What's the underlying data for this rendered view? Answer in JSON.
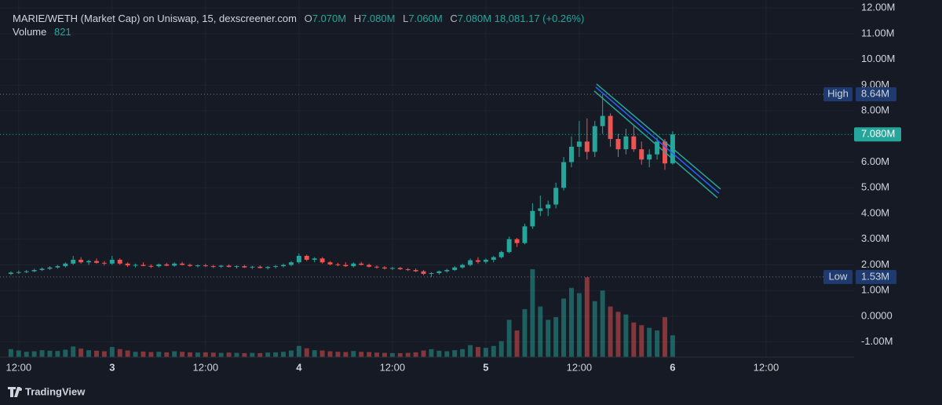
{
  "header": {
    "title": "MARIE/WETH (Market Cap) on Uniswap, 15, dexscreener.com",
    "o_label": "O",
    "o": "7.070M",
    "h_label": "H",
    "h": "7.080M",
    "l_label": "L",
    "l": "7.060M",
    "c_label": "C",
    "c": "7.080M",
    "change": "18,081.17 (+0.26%)",
    "volume_label": "Volume"
  },
  "footer": {
    "brand": "TradingView"
  },
  "chart_data": {
    "type": "candlestick",
    "up_color": "#26a69a",
    "down_color": "#ef5350",
    "xlim": [
      -2.4,
      107.3
    ],
    "xticks": [
      {
        "value": 0,
        "label": "12:00"
      },
      {
        "value": 12,
        "label": "3"
      },
      {
        "value": 24,
        "label": "12:00"
      },
      {
        "value": 36,
        "label": "4"
      },
      {
        "value": 48,
        "label": "12:00"
      },
      {
        "value": 60,
        "label": "5"
      },
      {
        "value": 72,
        "label": "12:00"
      },
      {
        "value": 84,
        "label": "6"
      },
      {
        "value": 96,
        "label": "12:00"
      }
    ],
    "ylim": [
      -1.59,
      12.31
    ],
    "yticks": [
      {
        "value": 12,
        "label": "12.00M"
      },
      {
        "value": 11,
        "label": "11.00M"
      },
      {
        "value": 10,
        "label": "10.00M"
      },
      {
        "value": 9,
        "label": "9.00M"
      },
      {
        "value": 8,
        "label": "8.00M"
      },
      {
        "value": 6,
        "label": "6.00M"
      },
      {
        "value": 5,
        "label": "5.00M"
      },
      {
        "value": 4,
        "label": "4.00M"
      },
      {
        "value": 3,
        "label": "3.00M"
      },
      {
        "value": 2,
        "label": "2.00M"
      },
      {
        "value": 1,
        "label": "1.00M"
      },
      {
        "value": 0,
        "label": "0.0000"
      },
      {
        "value": -1,
        "label": "-1.00M"
      }
    ],
    "grid": true,
    "x": [
      -1,
      0,
      1,
      2,
      3,
      4,
      5,
      6,
      7,
      8,
      9,
      10,
      11,
      12,
      13,
      14,
      15,
      16,
      17,
      18,
      19,
      20,
      21,
      22,
      23,
      24,
      25,
      26,
      27,
      28,
      29,
      30,
      31,
      32,
      33,
      34,
      35,
      36,
      37,
      38,
      39,
      40,
      41,
      42,
      43,
      44,
      45,
      46,
      47,
      48,
      49,
      50,
      51,
      52,
      53,
      54,
      55,
      56,
      57,
      58,
      59,
      60,
      61,
      62,
      63,
      64,
      65,
      66,
      67,
      68,
      69,
      70,
      71,
      72,
      73,
      74,
      75,
      76,
      77,
      78,
      79,
      80,
      81,
      82,
      83,
      84
    ],
    "open": [
      1.65,
      1.7,
      1.72,
      1.75,
      1.8,
      1.85,
      1.9,
      1.95,
      2.05,
      2.2,
      2.1,
      2.15,
      2.08,
      2.05,
      2.2,
      2.05,
      1.98,
      2.0,
      1.96,
      1.95,
      2.02,
      1.97,
      2.05,
      2.0,
      1.96,
      1.98,
      1.95,
      1.93,
      1.97,
      1.92,
      1.95,
      1.9,
      1.93,
      1.88,
      1.92,
      1.95,
      2.0,
      2.1,
      2.35,
      2.2,
      2.25,
      2.1,
      2.02,
      2.0,
      1.95,
      2.05,
      2.0,
      1.93,
      1.9,
      1.86,
      1.88,
      1.83,
      1.8,
      1.75,
      1.65,
      1.68,
      1.75,
      1.8,
      1.9,
      2.0,
      2.18,
      2.12,
      2.2,
      2.3,
      2.5,
      3.0,
      2.85,
      3.5,
      4.1,
      4.2,
      4.35,
      5.0,
      6.0,
      6.6,
      6.8,
      6.4,
      7.4,
      7.8,
      6.9,
      6.5,
      7.0,
      6.5,
      6.1,
      6.3,
      6.8,
      5.95
    ],
    "high": [
      1.75,
      1.78,
      1.8,
      1.85,
      1.9,
      1.95,
      2.0,
      2.1,
      2.35,
      2.3,
      2.2,
      2.25,
      2.15,
      2.35,
      2.25,
      2.1,
      2.05,
      2.1,
      2.02,
      2.05,
      2.08,
      2.1,
      2.12,
      2.05,
      2.02,
      2.04,
      2.0,
      2.0,
      2.02,
      1.98,
      2.0,
      1.96,
      1.98,
      1.95,
      2.0,
      2.05,
      2.15,
      2.45,
      2.4,
      2.3,
      2.3,
      2.15,
      2.08,
      2.1,
      2.1,
      2.12,
      2.05,
      1.98,
      1.95,
      1.92,
      1.92,
      1.88,
      1.86,
      1.8,
      1.72,
      1.78,
      1.85,
      1.95,
      2.05,
      2.25,
      2.3,
      2.25,
      2.35,
      2.55,
      3.1,
      3.05,
      3.6,
      4.4,
      4.7,
      4.5,
      5.2,
      6.2,
      7.0,
      7.6,
      7.7,
      7.6,
      8.64,
      7.9,
      7.1,
      7.3,
      7.4,
      6.8,
      6.5,
      6.95,
      6.9,
      7.2
    ],
    "low": [
      1.6,
      1.65,
      1.68,
      1.72,
      1.76,
      1.8,
      1.85,
      1.9,
      2.0,
      2.05,
      2.0,
      2.05,
      1.98,
      2.0,
      2.0,
      1.92,
      1.9,
      1.95,
      1.88,
      1.9,
      1.95,
      1.93,
      1.98,
      1.92,
      1.9,
      1.92,
      1.88,
      1.88,
      1.9,
      1.86,
      1.88,
      1.84,
      1.86,
      1.82,
      1.86,
      1.9,
      1.95,
      2.05,
      2.15,
      2.1,
      2.05,
      1.98,
      1.95,
      1.92,
      1.9,
      1.98,
      1.9,
      1.85,
      1.82,
      1.8,
      1.8,
      1.76,
      1.72,
      1.6,
      1.53,
      1.62,
      1.7,
      1.76,
      1.85,
      1.95,
      2.05,
      2.05,
      2.1,
      2.25,
      2.45,
      2.7,
      2.8,
      3.4,
      3.9,
      3.9,
      4.2,
      4.9,
      5.8,
      6.2,
      6.1,
      6.2,
      7.1,
      6.6,
      6.2,
      6.3,
      6.4,
      5.9,
      5.8,
      6.1,
      5.7,
      5.9
    ],
    "close": [
      1.7,
      1.72,
      1.75,
      1.8,
      1.85,
      1.9,
      1.95,
      2.05,
      2.2,
      2.1,
      2.15,
      2.08,
      2.05,
      2.2,
      2.05,
      1.98,
      2.0,
      1.96,
      1.95,
      2.02,
      1.97,
      2.05,
      2.0,
      1.96,
      1.98,
      1.95,
      1.93,
      1.97,
      1.92,
      1.95,
      1.9,
      1.93,
      1.88,
      1.92,
      1.95,
      2.0,
      2.1,
      2.35,
      2.2,
      2.25,
      2.1,
      2.02,
      2.0,
      1.95,
      2.05,
      2.0,
      1.93,
      1.9,
      1.86,
      1.88,
      1.83,
      1.8,
      1.75,
      1.65,
      1.68,
      1.75,
      1.8,
      1.9,
      2.0,
      2.18,
      2.12,
      2.2,
      2.3,
      2.5,
      3.0,
      2.85,
      3.5,
      4.1,
      4.2,
      4.35,
      5.0,
      6.0,
      6.6,
      6.8,
      6.4,
      7.4,
      7.8,
      6.9,
      6.5,
      7.0,
      6.5,
      6.1,
      6.3,
      6.8,
      5.95,
      7.08
    ],
    "volume": [
      300,
      250,
      200,
      220,
      260,
      240,
      230,
      280,
      400,
      320,
      260,
      240,
      220,
      380,
      300,
      250,
      200,
      210,
      190,
      200,
      180,
      220,
      200,
      180,
      170,
      180,
      170,
      160,
      170,
      160,
      150,
      160,
      150,
      170,
      180,
      200,
      250,
      420,
      330,
      260,
      250,
      220,
      200,
      190,
      230,
      200,
      190,
      170,
      160,
      150,
      150,
      160,
      180,
      250,
      300,
      240,
      220,
      260,
      300,
      450,
      380,
      350,
      420,
      600,
      1400,
      1000,
      1800,
      3300,
      1900,
      1400,
      1500,
      2200,
      2600,
      2400,
      3000,
      2100,
      2500,
      1900,
      1700,
      1600,
      1300,
      1200,
      1100,
      1000,
      1500,
      821
    ],
    "markers": [
      {
        "label": "High",
        "value": 8.64,
        "value_label": "8.64M",
        "color": "#1e3a6e"
      },
      {
        "value": 7.08,
        "value_label": "7.080M",
        "color": "#26a69a"
      },
      {
        "label": "Low",
        "value": 1.53,
        "value_label": "1.53M",
        "color": "#1e3a6e"
      }
    ],
    "trendlines": [
      {
        "color": "#26a69a",
        "x": [
          74.22,
          90.15
        ],
        "y": [
          9.04,
          4.95
        ]
      },
      {
        "color": "#2962ff",
        "x": [
          74.12,
          89.95
        ],
        "y": [
          8.92,
          4.79
        ]
      },
      {
        "color": "#26a69a",
        "x": [
          73.92,
          89.75
        ],
        "y": [
          8.77,
          4.61
        ]
      }
    ]
  }
}
